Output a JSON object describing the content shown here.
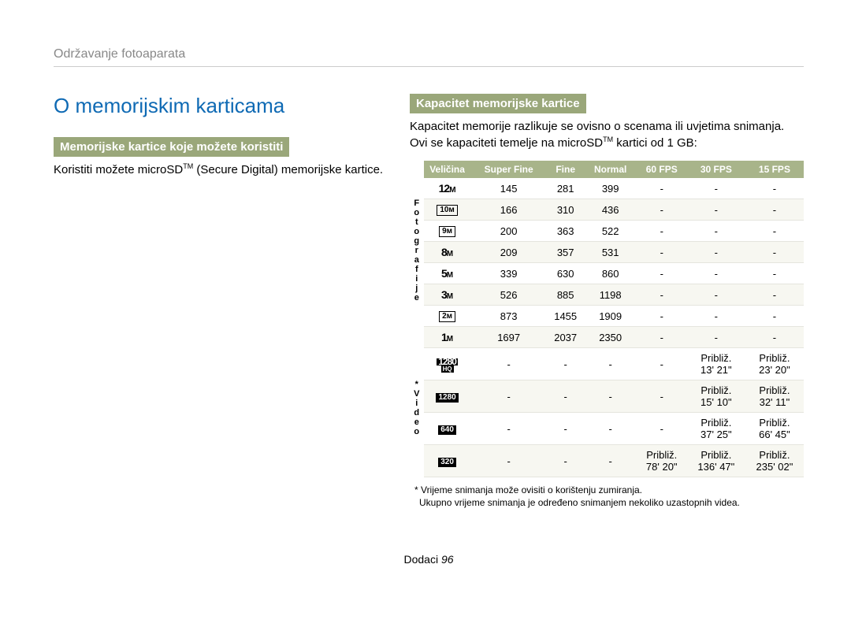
{
  "breadcrumb": "Održavanje fotoaparata",
  "heading": "O memorijskim karticama",
  "left": {
    "tag": "Memorijske kartice koje možete koristiti",
    "body_before_tm": "Koristiti možete microSD",
    "body_after_tm": " (Secure Digital) memorijske kartice."
  },
  "right": {
    "tag": "Kapacitet memorijske kartice",
    "body_before_tm": "Kapacitet memorije razlikuje se ovisno o scenama ili uvjetima snimanja. Ovi se kapaciteti temelje na microSD",
    "body_after_tm": " kartici od 1 GB:"
  },
  "table": {
    "headers": [
      "Veličina",
      "Super Fine",
      "Fine",
      "Normal",
      "60 FPS",
      "30 FPS",
      "15 FPS"
    ],
    "side_label_photo": "Fotografije",
    "side_label_video": "* Video",
    "photo_rows": [
      {
        "size_html": "<span class='size-plain'>12</span><span class='size-m'>M</span>",
        "vals": [
          "145",
          "281",
          "399",
          "-",
          "-",
          "-"
        ]
      },
      {
        "size_html": "<span class='size-box'>10ᴍ</span>",
        "vals": [
          "166",
          "310",
          "436",
          "-",
          "-",
          "-"
        ]
      },
      {
        "size_html": "<span class='size-box'>9ᴍ</span>",
        "vals": [
          "200",
          "363",
          "522",
          "-",
          "-",
          "-"
        ]
      },
      {
        "size_html": "<span class='size-plain'>8</span><span class='size-m'>M</span>",
        "vals": [
          "209",
          "357",
          "531",
          "-",
          "-",
          "-"
        ]
      },
      {
        "size_html": "<span class='size-plain'>5</span><span class='size-m'>M</span>",
        "vals": [
          "339",
          "630",
          "860",
          "-",
          "-",
          "-"
        ]
      },
      {
        "size_html": "<span class='size-plain'>3</span><span class='size-m'>M</span>",
        "vals": [
          "526",
          "885",
          "1198",
          "-",
          "-",
          "-"
        ]
      },
      {
        "size_html": "<span class='size-box'>2ᴍ</span>",
        "vals": [
          "873",
          "1455",
          "1909",
          "-",
          "-",
          "-"
        ]
      },
      {
        "size_html": "<span class='size-plain'>1</span><span class='size-m'>M</span>",
        "vals": [
          "1697",
          "2037",
          "2350",
          "-",
          "-",
          "-"
        ]
      }
    ],
    "video_rows": [
      {
        "size_html": "<span class='size-stacked'><span class='top'>1280</span><span class='bot'>HQ</span></span>",
        "vals": [
          "-",
          "-",
          "-",
          "-",
          "Približ. 13' 21\"",
          "Približ. 23' 20\""
        ]
      },
      {
        "size_html": "<span class='size-box-solid'>1280</span>",
        "vals": [
          "-",
          "-",
          "-",
          "-",
          "Približ. 15' 10\"",
          "Približ. 32' 11\""
        ]
      },
      {
        "size_html": "<span class='size-box-solid'>640</span>",
        "vals": [
          "-",
          "-",
          "-",
          "-",
          "Približ. 37' 25\"",
          "Približ. 66' 45\""
        ]
      },
      {
        "size_html": "<span class='size-box-solid'>320</span>",
        "vals": [
          "-",
          "-",
          "-",
          "Približ. 78' 20\"",
          "Približ. 136' 47\"",
          "Približ. 235' 02\""
        ]
      }
    ]
  },
  "footnote1": "* Vrijeme snimanja može ovisiti o korištenju zumiranja.",
  "footnote2": "Ukupno vrijeme snimanja je određeno snimanjem nekoliko uzastopnih videa.",
  "footer_label": "Dodaci",
  "footer_page": "96",
  "colors": {
    "heading": "#0f6ab4",
    "tag_bg": "#9aa77a",
    "th_bg": "#a8b48a",
    "row_alt": "#f7f7f1",
    "breadcrumb": "#888888"
  }
}
